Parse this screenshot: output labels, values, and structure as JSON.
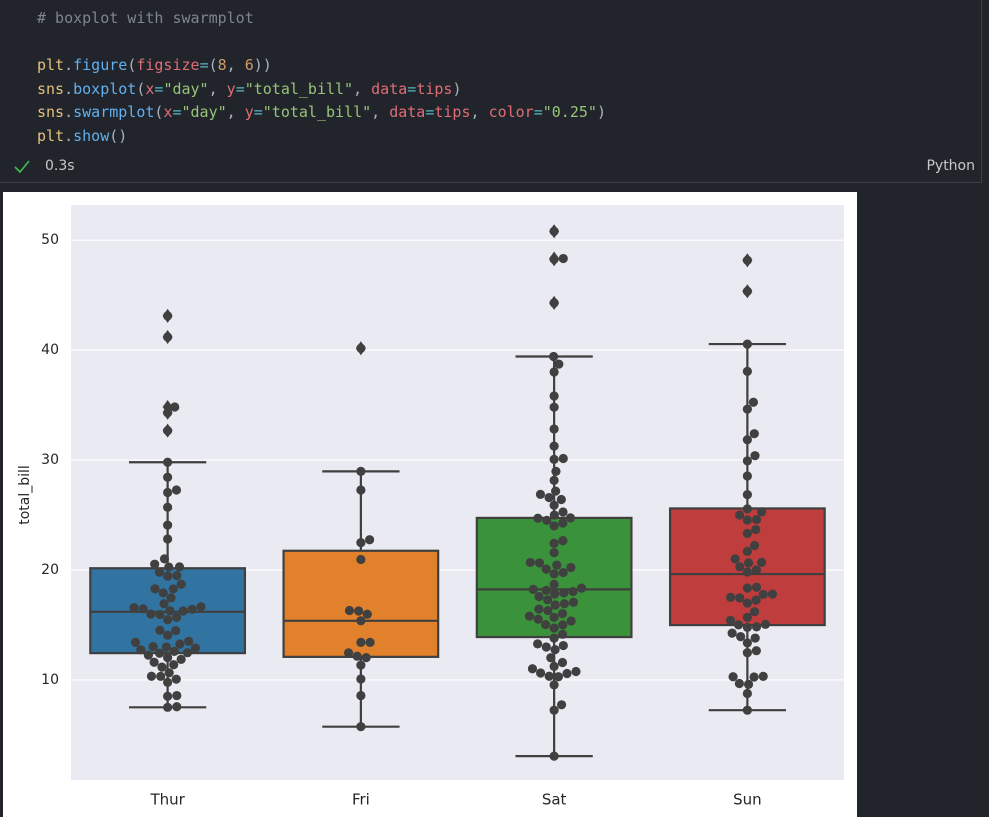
{
  "notebook": {
    "code": [
      "# boxplot with swarmplot",
      "plt.figure(figsize=(8, 6))",
      "sns.boxplot(x=\"day\", y=\"total_bill\", data=tips)",
      "sns.swarmplot(x=\"day\", y=\"total_bill\", data=tips, color=\"0.25\")",
      "plt.show()"
    ],
    "status": "0.3s",
    "language": "Python"
  },
  "chart_data": {
    "type": "box",
    "ylabel": "total_bill",
    "categories": [
      "Thur",
      "Fri",
      "Sat",
      "Sun"
    ],
    "box_colors": [
      "#3274a1",
      "#e1812c",
      "#3a923a",
      "#c03d3e"
    ],
    "edge_color": "#3f3f3f",
    "boxes": [
      {
        "whislo": 7.51,
        "q1": 12.44,
        "med": 16.2,
        "q3": 20.16,
        "whishi": 29.8,
        "fliers": [
          32.68,
          34.3,
          34.83,
          41.19,
          43.11
        ]
      },
      {
        "whislo": 5.75,
        "q1": 12.1,
        "med": 15.38,
        "q3": 21.75,
        "whishi": 28.97,
        "fliers": [
          40.17
        ]
      },
      {
        "whislo": 3.07,
        "q1": 13.9,
        "med": 18.24,
        "q3": 24.74,
        "whishi": 39.42,
        "fliers": [
          44.3,
          48.27,
          48.33,
          50.81
        ]
      },
      {
        "whislo": 7.25,
        "q1": 14.99,
        "med": 19.63,
        "q3": 25.6,
        "whishi": 40.55,
        "fliers": [
          45.35,
          48.17
        ]
      }
    ],
    "swarm": {
      "color": "#404040",
      "values": [
        [
          7.51,
          7.56,
          8.52,
          8.58,
          9.78,
          10.07,
          10.33,
          10.34,
          10.65,
          11.17,
          11.38,
          11.61,
          11.87,
          12.03,
          12.26,
          12.43,
          12.48,
          12.6,
          12.74,
          12.9,
          13.0,
          13.03,
          13.27,
          13.42,
          13.51,
          14.07,
          14.48,
          14.52,
          15.48,
          15.69,
          15.95,
          16.0,
          16.27,
          16.29,
          16.43,
          16.47,
          16.58,
          16.66,
          16.93,
          17.47,
          17.92,
          18.28,
          18.29,
          18.71,
          19.44,
          19.49,
          19.81,
          20.27,
          20.29,
          20.53,
          21.01,
          22.82,
          24.08,
          25.71,
          27.05,
          27.28,
          28.44,
          29.8,
          32.68,
          34.3,
          34.83,
          41.19,
          43.11
        ],
        [
          5.75,
          8.58,
          10.09,
          11.35,
          12.03,
          12.16,
          12.46,
          13.42,
          13.42,
          15.38,
          15.98,
          16.27,
          16.32,
          20.96,
          22.49,
          22.75,
          27.28,
          28.97,
          40.17
        ],
        [
          3.07,
          7.25,
          7.74,
          9.55,
          10.29,
          10.34,
          10.59,
          10.63,
          10.77,
          11.02,
          11.24,
          11.59,
          12.02,
          12.76,
          13.0,
          13.13,
          13.28,
          13.81,
          14.15,
          14.73,
          15.01,
          15.04,
          15.36,
          15.53,
          15.69,
          15.81,
          16.04,
          16.31,
          16.45,
          16.82,
          16.93,
          17.07,
          17.29,
          17.59,
          17.82,
          17.92,
          18.04,
          18.15,
          18.24,
          18.35,
          18.69,
          19.65,
          19.77,
          20.08,
          20.23,
          20.45,
          20.65,
          20.69,
          21.58,
          22.42,
          22.67,
          24.01,
          24.27,
          24.52,
          24.71,
          24.74,
          25.0,
          25.28,
          25.89,
          26.41,
          26.59,
          26.88,
          27.18,
          28.15,
          28.97,
          30.06,
          30.14,
          31.27,
          32.83,
          34.81,
          35.83,
          38.01,
          38.73,
          39.42,
          44.3,
          48.27,
          48.33,
          50.81
        ],
        [
          7.25,
          8.77,
          9.6,
          9.68,
          10.27,
          10.29,
          10.33,
          12.48,
          12.66,
          13.37,
          13.81,
          13.94,
          14.26,
          14.78,
          14.83,
          15.01,
          15.06,
          15.42,
          15.69,
          16.21,
          16.99,
          17.26,
          17.46,
          17.51,
          17.78,
          17.81,
          18.35,
          18.43,
          19.82,
          20.0,
          20.29,
          20.65,
          20.69,
          21.01,
          21.7,
          22.23,
          23.33,
          23.68,
          24.55,
          24.59,
          25.0,
          25.29,
          25.56,
          26.86,
          28.55,
          29.93,
          30.4,
          31.85,
          32.4,
          34.63,
          35.26,
          38.07,
          40.55,
          45.35,
          48.17
        ]
      ]
    },
    "ylim": [
      0.9,
      53.2
    ],
    "yticks": [
      10,
      20,
      30,
      40,
      50
    ],
    "grid": true
  }
}
